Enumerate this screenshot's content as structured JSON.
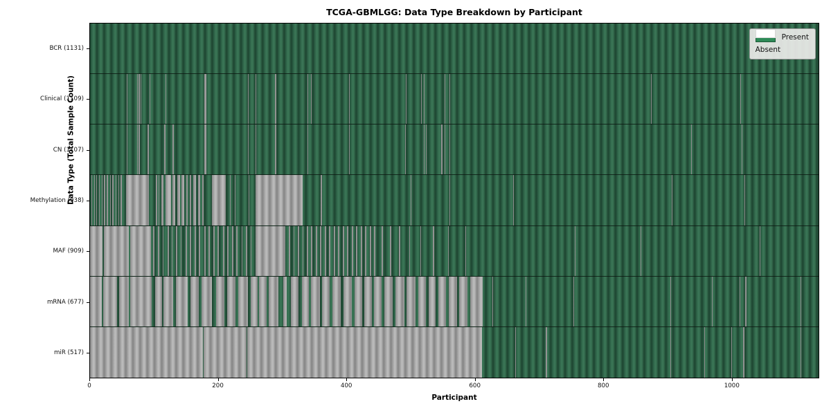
{
  "figure": {
    "title": "TCGA-GBMLGG: Data Type Breakdown by Participant",
    "xlabel": "Participant",
    "ylabel": "Data Type (Total Sample Count)"
  },
  "legend": {
    "items": [
      {
        "label": "Present",
        "color": "#2e8b57"
      },
      {
        "label": "Absent",
        "color": "#ffffff"
      }
    ]
  },
  "colors": {
    "present_green": "#2e8b57",
    "present_bar_dark_edge": "#1e4632",
    "absent_visual_gray": "#a8a8a8",
    "plot_border": "#000000",
    "legend_background": "#ececе9",
    "legend_border": "#9a9a9a",
    "figure_background": "#ffffff"
  },
  "chart_data": {
    "type": "heatmap",
    "title": "TCGA-GBMLGG: Data Type Breakdown by Participant",
    "xlabel": "Participant",
    "ylabel": "Data Type (Total Sample Count)",
    "legend_position": "upper right",
    "grid": false,
    "x_domain": [
      0,
      1136
    ],
    "x_ticks": [
      0,
      200,
      400,
      600,
      800,
      1000
    ],
    "total_participants": 1131,
    "rows": [
      {
        "name": "BCR",
        "label": "BCR (1131)",
        "present_count": 1131,
        "absent_ranges": []
      },
      {
        "name": "Clinical",
        "label": "Clinical (1109)",
        "present_count": 1109,
        "absent_ranges": [
          [
            57,
            58
          ],
          [
            73,
            74
          ],
          [
            76,
            77
          ],
          [
            79,
            80
          ],
          [
            93,
            94
          ],
          [
            118,
            119
          ],
          [
            178,
            181
          ],
          [
            246,
            247
          ],
          [
            258,
            259
          ],
          [
            288,
            291
          ],
          [
            339,
            340
          ],
          [
            344,
            345
          ],
          [
            404,
            405
          ],
          [
            492,
            493
          ],
          [
            516,
            517
          ],
          [
            520,
            521
          ],
          [
            553,
            554
          ],
          [
            560,
            561
          ],
          [
            875,
            876
          ],
          [
            1014,
            1015
          ]
        ]
      },
      {
        "name": "CN",
        "label": "CN (1107)",
        "present_count": 1107,
        "absent_ranges": [
          [
            57,
            58
          ],
          [
            73,
            74
          ],
          [
            76,
            77
          ],
          [
            90,
            91
          ],
          [
            116,
            117
          ],
          [
            129,
            130
          ],
          [
            178,
            181
          ],
          [
            246,
            247
          ],
          [
            258,
            259
          ],
          [
            288,
            291
          ],
          [
            339,
            340
          ],
          [
            404,
            405
          ],
          [
            491,
            492
          ],
          [
            520,
            521
          ],
          [
            524,
            525
          ],
          [
            548,
            549
          ],
          [
            553,
            554
          ],
          [
            560,
            561
          ],
          [
            937,
            938
          ],
          [
            1016,
            1017
          ]
        ]
      },
      {
        "name": "Methylation",
        "label": "Methylation (938)",
        "present_count": 938,
        "absent_ranges": [
          [
            2,
            3
          ],
          [
            6,
            7
          ],
          [
            10,
            11
          ],
          [
            14,
            15
          ],
          [
            18,
            19
          ],
          [
            22,
            23
          ],
          [
            26,
            28
          ],
          [
            31,
            32
          ],
          [
            35,
            36
          ],
          [
            40,
            41
          ],
          [
            44,
            45
          ],
          [
            48,
            49
          ],
          [
            56,
            92
          ],
          [
            103,
            104
          ],
          [
            107,
            108
          ],
          [
            111,
            115
          ],
          [
            118,
            126
          ],
          [
            129,
            133
          ],
          [
            136,
            140
          ],
          [
            143,
            147
          ],
          [
            150,
            152
          ],
          [
            155,
            158
          ],
          [
            161,
            165
          ],
          [
            168,
            172
          ],
          [
            175,
            177
          ],
          [
            190,
            212
          ],
          [
            218,
            219
          ],
          [
            226,
            227
          ],
          [
            247,
            248
          ],
          [
            258,
            331
          ],
          [
            360,
            361
          ],
          [
            500,
            501
          ],
          [
            560,
            561
          ],
          [
            660,
            661
          ],
          [
            907,
            908
          ],
          [
            1020,
            1021
          ]
        ]
      },
      {
        "name": "MAF",
        "label": "MAF (909)",
        "present_count": 909,
        "absent_ranges": [
          [
            0,
            19
          ],
          [
            22,
            60
          ],
          [
            63,
            95
          ],
          [
            98,
            100
          ],
          [
            106,
            108
          ],
          [
            113,
            115
          ],
          [
            121,
            123
          ],
          [
            127,
            129
          ],
          [
            134,
            136
          ],
          [
            141,
            143
          ],
          [
            149,
            151
          ],
          [
            156,
            158
          ],
          [
            163,
            165
          ],
          [
            170,
            172
          ],
          [
            178,
            180
          ],
          [
            185,
            187
          ],
          [
            192,
            194
          ],
          [
            199,
            201
          ],
          [
            207,
            209
          ],
          [
            214,
            216
          ],
          [
            221,
            223
          ],
          [
            228,
            230
          ],
          [
            236,
            238
          ],
          [
            243,
            245
          ],
          [
            250,
            252
          ],
          [
            258,
            305
          ],
          [
            310,
            312
          ],
          [
            317,
            319
          ],
          [
            324,
            326
          ],
          [
            331,
            333
          ],
          [
            338,
            340
          ],
          [
            345,
            347
          ],
          [
            352,
            354
          ],
          [
            359,
            361
          ],
          [
            366,
            368
          ],
          [
            373,
            375
          ],
          [
            380,
            382
          ],
          [
            387,
            389
          ],
          [
            394,
            396
          ],
          [
            401,
            403
          ],
          [
            408,
            410
          ],
          [
            415,
            417
          ],
          [
            422,
            424
          ],
          [
            429,
            431
          ],
          [
            436,
            438
          ],
          [
            443,
            445
          ],
          [
            455,
            456
          ],
          [
            468,
            469
          ],
          [
            482,
            483
          ],
          [
            498,
            499
          ],
          [
            515,
            516
          ],
          [
            535,
            536
          ],
          [
            558,
            559
          ],
          [
            585,
            586
          ],
          [
            756,
            757
          ],
          [
            858,
            859
          ],
          [
            1044,
            1045
          ]
        ]
      },
      {
        "name": "mRNA",
        "label": "mRNA (677)",
        "present_count": 677,
        "absent_ranges": [
          [
            0,
            18
          ],
          [
            21,
            42
          ],
          [
            45,
            60
          ],
          [
            63,
            96
          ],
          [
            101,
            112
          ],
          [
            115,
            130
          ],
          [
            134,
            152
          ],
          [
            157,
            170
          ],
          [
            174,
            190
          ],
          [
            196,
            210
          ],
          [
            214,
            227
          ],
          [
            231,
            246
          ],
          [
            250,
            261
          ],
          [
            264,
            275
          ],
          [
            279,
            294
          ],
          [
            301,
            307
          ],
          [
            313,
            325
          ],
          [
            330,
            341
          ],
          [
            345,
            358
          ],
          [
            362,
            374
          ],
          [
            378,
            391
          ],
          [
            395,
            408
          ],
          [
            412,
            424
          ],
          [
            428,
            439
          ],
          [
            443,
            455
          ],
          [
            459,
            472
          ],
          [
            476,
            490
          ],
          [
            494,
            508
          ],
          [
            512,
            524
          ],
          [
            528,
            539
          ],
          [
            543,
            555
          ],
          [
            559,
            572
          ],
          [
            576,
            589
          ],
          [
            593,
            612
          ],
          [
            627,
            628
          ],
          [
            679,
            680
          ],
          [
            754,
            755
          ],
          [
            905,
            906
          ],
          [
            970,
            971
          ],
          [
            1013,
            1014
          ],
          [
            1022,
            1024
          ],
          [
            1108,
            1109
          ]
        ]
      },
      {
        "name": "miR",
        "label": "miR (517)",
        "present_count": 517,
        "absent_ranges": [
          [
            0,
            176
          ],
          [
            177,
            244
          ],
          [
            245,
            611
          ],
          [
            663,
            664
          ],
          [
            711,
            712
          ],
          [
            905,
            906
          ],
          [
            958,
            959
          ],
          [
            1000,
            1001
          ],
          [
            1018,
            1020
          ],
          [
            1108,
            1109
          ]
        ]
      }
    ]
  }
}
